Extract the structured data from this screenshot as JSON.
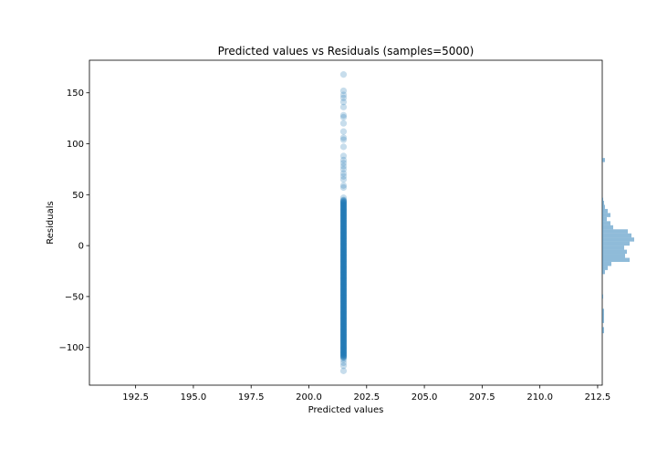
{
  "chart_data": {
    "type": "scatter",
    "title": "Predicted values vs Residuals (samples=5000)",
    "xlabel": "Predicted values",
    "ylabel": "Residuals",
    "xlim": [
      190.5,
      212.7
    ],
    "ylim": [
      -137,
      182
    ],
    "xticks": [
      "192.5",
      "195.0",
      "197.5",
      "200.0",
      "202.5",
      "205.0",
      "207.5",
      "210.0",
      "212.5"
    ],
    "yticks": [
      "−100",
      "−50",
      "0",
      "50",
      "100",
      "150"
    ],
    "xtick_values": [
      192.5,
      195.0,
      197.5,
      200.0,
      202.5,
      205.0,
      207.5,
      210.0,
      212.5
    ],
    "ytick_values": [
      -100,
      -50,
      0,
      50,
      100,
      150
    ],
    "grid": false,
    "point_color": "#1f77b4",
    "point_alpha": 0.25,
    "scatter": {
      "x": 201.5,
      "dense_range": [
        -110,
        45
      ],
      "outliers": [
        168,
        152,
        148,
        145,
        141,
        136,
        128,
        126,
        120,
        112,
        106,
        104,
        97,
        88,
        84,
        81,
        78,
        75,
        71,
        68,
        65,
        59,
        57,
        47,
        -112,
        -115,
        -118,
        -123
      ]
    },
    "histogram": {
      "orientation": "horizontal",
      "color": "#1f77b4",
      "alpha": 0.5,
      "bins": [
        {
          "y0": 82,
          "y1": 86,
          "count": 3
        },
        {
          "y0": 44,
          "y1": 47,
          "count": 1
        },
        {
          "y0": 40,
          "y1": 44,
          "count": 2
        },
        {
          "y0": 36,
          "y1": 40,
          "count": 3
        },
        {
          "y0": 32,
          "y1": 36,
          "count": 6
        },
        {
          "y0": 28,
          "y1": 32,
          "count": 9
        },
        {
          "y0": 24,
          "y1": 28,
          "count": 5
        },
        {
          "y0": 20,
          "y1": 24,
          "count": 9
        },
        {
          "y0": 16,
          "y1": 20,
          "count": 12
        },
        {
          "y0": 12,
          "y1": 16,
          "count": 28
        },
        {
          "y0": 8,
          "y1": 12,
          "count": 32
        },
        {
          "y0": 4,
          "y1": 8,
          "count": 35
        },
        {
          "y0": 0,
          "y1": 4,
          "count": 30
        },
        {
          "y0": -4,
          "y1": 0,
          "count": 24
        },
        {
          "y0": -8,
          "y1": -4,
          "count": 27
        },
        {
          "y0": -12,
          "y1": -8,
          "count": 25
        },
        {
          "y0": -16,
          "y1": -12,
          "count": 30
        },
        {
          "y0": -20,
          "y1": -16,
          "count": 10
        },
        {
          "y0": -24,
          "y1": -20,
          "count": 6
        },
        {
          "y0": -28,
          "y1": -24,
          "count": 3
        },
        {
          "y0": -52,
          "y1": -48,
          "count": 1
        },
        {
          "y0": -68,
          "y1": -62,
          "count": 2
        },
        {
          "y0": -76,
          "y1": -68,
          "count": 2
        },
        {
          "y0": -86,
          "y1": -80,
          "count": 2
        }
      ]
    }
  }
}
